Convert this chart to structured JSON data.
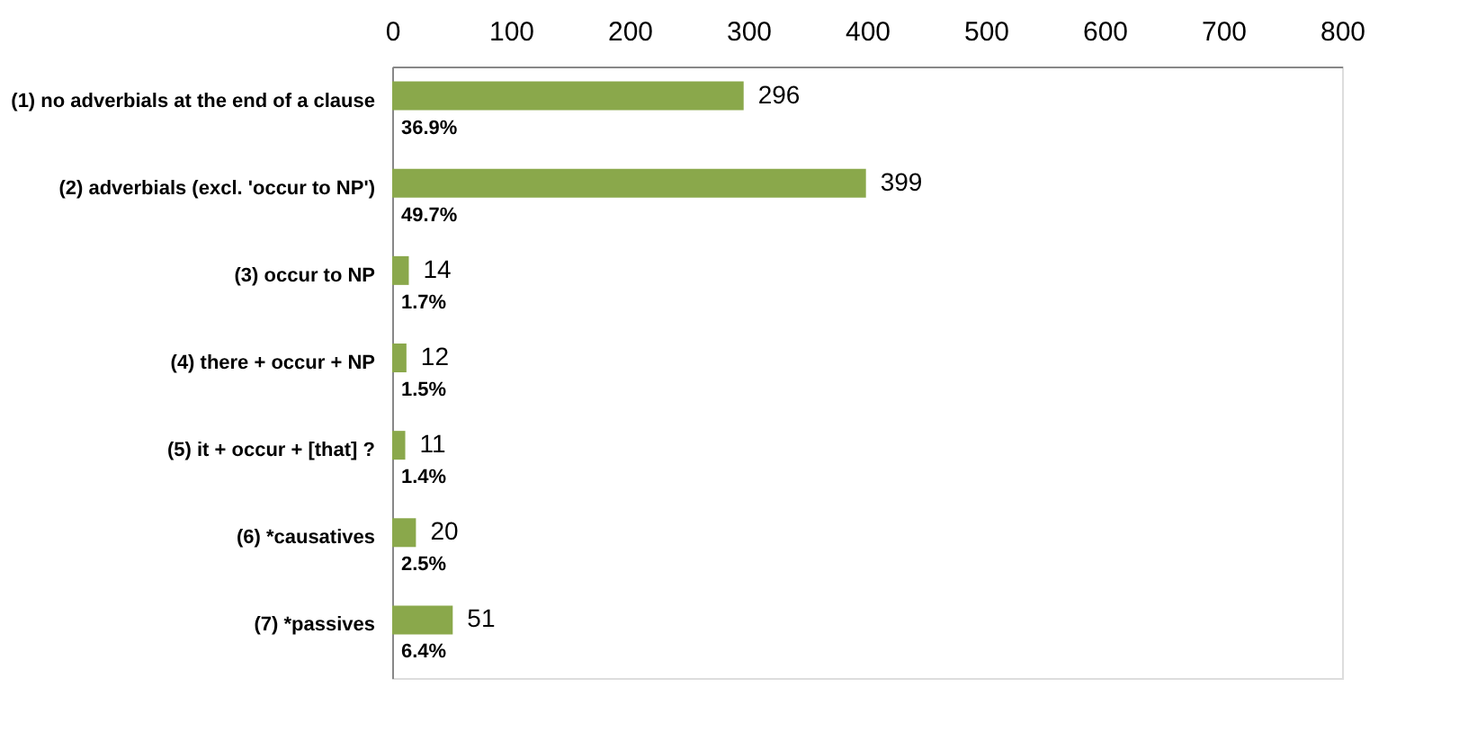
{
  "chart_data": {
    "type": "bar",
    "orientation": "horizontal",
    "categories": [
      "(1) no adverbials at the end of a clause",
      "(2) adverbials (excl. 'occur to NP')",
      "(3) occur to NP",
      "(4) there + occur + NP",
      "(5) it + occur + [that] ?",
      "(6) *causatives",
      "(7) *passives"
    ],
    "values": [
      296,
      399,
      14,
      12,
      11,
      20,
      51
    ],
    "data_labels": true,
    "annotations": [
      "36.9%",
      "49.7%",
      "1.7%",
      "1.5%",
      "1.4%",
      "2.5%",
      "6.4%"
    ],
    "color": "#8aa84b",
    "xlim": [
      0,
      800
    ],
    "xticks": [
      0,
      100,
      200,
      300,
      400,
      500,
      600,
      700,
      800
    ],
    "grid": false,
    "legend": false
  }
}
